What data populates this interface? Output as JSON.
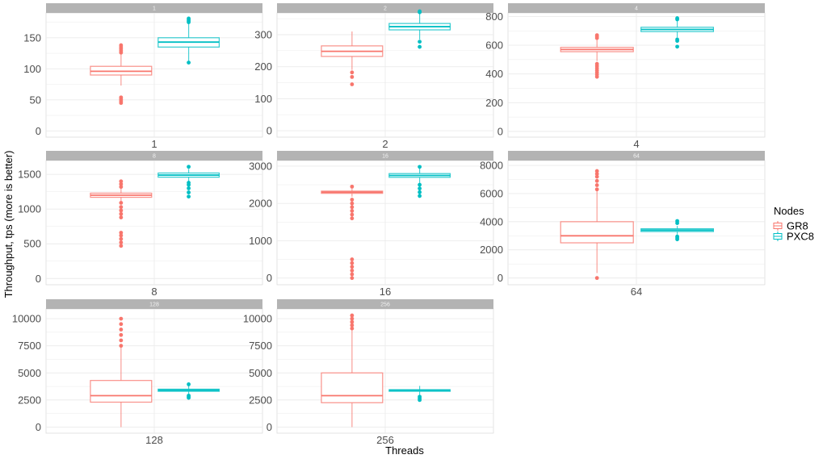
{
  "chart_data": {
    "type": "box",
    "ylabel": "Throughput, tps (more is better)",
    "xlabel": "Threads",
    "legend": {
      "title": "Nodes",
      "position": "right",
      "entries": [
        "GR8",
        "PXC8"
      ]
    },
    "colors": {
      "GR8": "#F8766D",
      "PXC8": "#00BFC4"
    },
    "grid": true,
    "panels": [
      {
        "strip": "1",
        "category": "1",
        "yticks": [
          "0",
          "50",
          "100",
          "150"
        ],
        "ylim": [
          -10,
          190
        ],
        "boxes": [
          {
            "series": "GR8",
            "whisker_low": 73,
            "q1": 90,
            "median": 96,
            "q3": 104,
            "whisker_high": 124,
            "outliers": [
              45,
              48,
              51,
              54,
              126,
              129,
              132,
              135,
              138
            ]
          },
          {
            "series": "PXC8",
            "whisker_low": 112,
            "q1": 135,
            "median": 143,
            "q3": 150,
            "whisker_high": 172,
            "outliers": [
              110,
              175,
              177,
              179,
              181
            ]
          }
        ]
      },
      {
        "strip": "2",
        "category": "2",
        "yticks": [
          "0",
          "100",
          "200",
          "300"
        ],
        "ylim": [
          -20,
          368
        ],
        "boxes": [
          {
            "series": "GR8",
            "whisker_low": 190,
            "q1": 232,
            "median": 248,
            "q3": 265,
            "whisker_high": 310,
            "outliers": [
              145,
              168,
              182
            ]
          },
          {
            "series": "PXC8",
            "whisker_low": 285,
            "q1": 315,
            "median": 325,
            "q3": 335,
            "whisker_high": 365,
            "outliers": [
              262,
              278,
              370,
              373
            ]
          }
        ]
      },
      {
        "strip": "4",
        "category": "4",
        "yticks": [
          "0",
          "200",
          "400",
          "600",
          "800"
        ],
        "ylim": [
          -40,
          825
        ],
        "boxes": [
          {
            "series": "GR8",
            "whisker_low": 490,
            "q1": 555,
            "median": 570,
            "q3": 585,
            "whisker_high": 640,
            "outliers": [
              380,
              395,
              410,
              425,
              440,
              455,
              470,
              650,
              660,
              670
            ]
          },
          {
            "series": "PXC8",
            "whisker_low": 655,
            "q1": 695,
            "median": 710,
            "q3": 725,
            "whisker_high": 770,
            "outliers": [
              590,
              630,
              640,
              780,
              788
            ]
          }
        ]
      },
      {
        "strip": "8",
        "category": "8",
        "yticks": [
          "0",
          "500",
          "1000",
          "1500"
        ],
        "ylim": [
          -90,
          1700
        ],
        "boxes": [
          {
            "series": "GR8",
            "whisker_low": 1100,
            "q1": 1170,
            "median": 1200,
            "q3": 1230,
            "whisker_high": 1300,
            "outliers": [
              470,
              520,
              570,
              620,
              660,
              880,
              930,
              980,
              1030,
              1090,
              1320,
              1360,
              1400
            ]
          },
          {
            "series": "PXC8",
            "whisker_low": 1400,
            "q1": 1460,
            "median": 1490,
            "q3": 1520,
            "whisker_high": 1580,
            "outliers": [
              1180,
              1240,
              1300,
              1350,
              1380,
              1610
            ]
          }
        ]
      },
      {
        "strip": "16",
        "category": "16",
        "yticks": [
          "0",
          "1000",
          "2000",
          "3000"
        ],
        "ylim": [
          -180,
          3150
        ],
        "boxes": [
          {
            "series": "GR8",
            "whisker_low": 2180,
            "q1": 2270,
            "median": 2300,
            "q3": 2330,
            "whisker_high": 2400,
            "outliers": [
              0,
              100,
              200,
              300,
              400,
              500,
              1600,
              1700,
              1800,
              1900,
              2000,
              2100,
              2450
            ]
          },
          {
            "series": "PXC8",
            "whisker_low": 2550,
            "q1": 2700,
            "median": 2750,
            "q3": 2800,
            "whisker_high": 2950,
            "outliers": [
              2200,
              2300,
              2400,
              2500,
              2980
            ]
          }
        ]
      },
      {
        "strip": "64",
        "category": "64",
        "yticks": [
          "0",
          "2000",
          "4000",
          "6000",
          "8000"
        ],
        "ylim": [
          -480,
          8350
        ],
        "boxes": [
          {
            "series": "GR8",
            "whisker_low": 350,
            "q1": 2500,
            "median": 3000,
            "q3": 4000,
            "whisker_high": 6200,
            "outliers": [
              0,
              6300,
              6600,
              6900,
              7200,
              7400,
              7600
            ]
          },
          {
            "series": "PXC8",
            "whisker_low": 3100,
            "q1": 3300,
            "median": 3400,
            "q3": 3500,
            "whisker_high": 3700,
            "outliers": [
              2750,
              2850,
              2950,
              3900,
              4050
            ]
          }
        ]
      },
      {
        "strip": "128",
        "category": "128",
        "yticks": [
          "0",
          "2500",
          "5000",
          "7500",
          "10000"
        ],
        "ylim": [
          -560,
          10900
        ],
        "boxes": [
          {
            "series": "GR8",
            "whisker_low": 0,
            "q1": 2300,
            "median": 2900,
            "q3": 4300,
            "whisker_high": 7400,
            "outliers": [
              7500,
              8000,
              8500,
              9000,
              9500,
              10000
            ]
          },
          {
            "series": "PXC8",
            "whisker_low": 3000,
            "q1": 3300,
            "median": 3400,
            "q3": 3500,
            "whisker_high": 3800,
            "outliers": [
              2700,
              2800,
              2900,
              3950
            ]
          }
        ]
      },
      {
        "strip": "256",
        "category": "256",
        "yticks": [
          "0",
          "2500",
          "5000",
          "7500",
          "10000"
        ],
        "ylim": [
          -560,
          10900
        ],
        "boxes": [
          {
            "series": "GR8",
            "whisker_low": 0,
            "q1": 2250,
            "median": 2900,
            "q3": 5000,
            "whisker_high": 9000,
            "outliers": [
              9100,
              9400,
              9700,
              10000,
              10300
            ]
          },
          {
            "series": "PXC8",
            "whisker_low": 2900,
            "q1": 3300,
            "median": 3400,
            "q3": 3450,
            "whisker_high": 3800,
            "outliers": [
              2500,
              2650,
              2800
            ]
          }
        ]
      }
    ]
  }
}
